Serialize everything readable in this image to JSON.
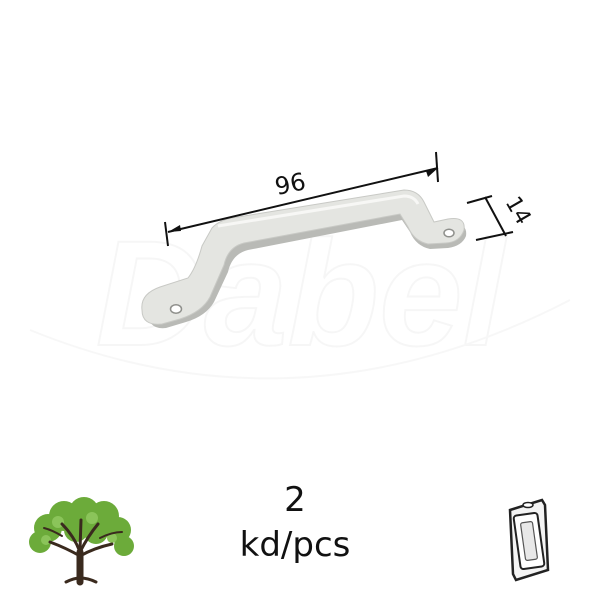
{
  "dimensions": {
    "length": "96",
    "height": "14"
  },
  "quantity": {
    "count": "2",
    "unit": "kd/pcs"
  },
  "watermark": {
    "text": "Dabel"
  },
  "icons": {
    "left": "tree-icon",
    "right": "blister-pack-icon"
  },
  "colors": {
    "handle": "#e4e5e1",
    "handle_shadow": "#b9bab6",
    "dimension_line": "#111111",
    "tree_trunk": "#3a2a1e",
    "tree_leaves": "#6cab3a"
  }
}
